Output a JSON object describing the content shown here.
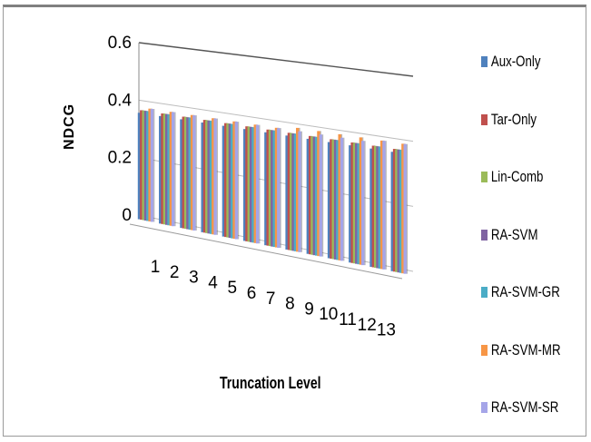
{
  "chart_data": {
    "type": "bar",
    "subtype": "3d-clustered",
    "title": "",
    "xlabel": "Truncation Level",
    "ylabel": "NDCG",
    "ylim": [
      0,
      0.6
    ],
    "yticks": [
      "0",
      "0.2",
      "0.4",
      "0.6"
    ],
    "categories": [
      "1",
      "2",
      "3",
      "4",
      "5",
      "6",
      "7",
      "8",
      "9",
      "10",
      "11",
      "12",
      "13"
    ],
    "legend_position": "right",
    "series": [
      {
        "name": "Aux-Only",
        "color": "#4F81BD",
        "values": [
          0.37,
          0.37,
          0.37,
          0.37,
          0.37,
          0.37,
          0.37,
          0.37,
          0.37,
          0.37,
          0.37,
          0.37,
          0.37
        ]
      },
      {
        "name": "Tar-Only",
        "color": "#C0504D",
        "values": [
          0.38,
          0.38,
          0.38,
          0.38,
          0.38,
          0.38,
          0.38,
          0.38,
          0.38,
          0.38,
          0.38,
          0.38,
          0.38
        ]
      },
      {
        "name": "Lin-Comb",
        "color": "#9BBB59",
        "values": [
          0.38,
          0.38,
          0.38,
          0.38,
          0.38,
          0.38,
          0.38,
          0.38,
          0.38,
          0.38,
          0.38,
          0.38,
          0.38
        ]
      },
      {
        "name": "RA-SVM",
        "color": "#8064A2",
        "values": [
          0.38,
          0.38,
          0.38,
          0.38,
          0.38,
          0.38,
          0.38,
          0.38,
          0.38,
          0.38,
          0.38,
          0.38,
          0.38
        ]
      },
      {
        "name": "RA-SVM-GR",
        "color": "#4BACC6",
        "values": [
          0.38,
          0.38,
          0.38,
          0.38,
          0.38,
          0.38,
          0.38,
          0.38,
          0.38,
          0.38,
          0.38,
          0.38,
          0.38
        ]
      },
      {
        "name": "RA-SVM-MR",
        "color": "#F79646",
        "values": [
          0.39,
          0.39,
          0.39,
          0.39,
          0.39,
          0.39,
          0.39,
          0.4,
          0.4,
          0.4,
          0.4,
          0.4,
          0.4
        ]
      },
      {
        "name": "RA-SVM-SR",
        "color": "#A5A5E8",
        "values": [
          0.39,
          0.39,
          0.39,
          0.39,
          0.39,
          0.39,
          0.39,
          0.39,
          0.39,
          0.39,
          0.39,
          0.4,
          0.4
        ]
      }
    ]
  }
}
